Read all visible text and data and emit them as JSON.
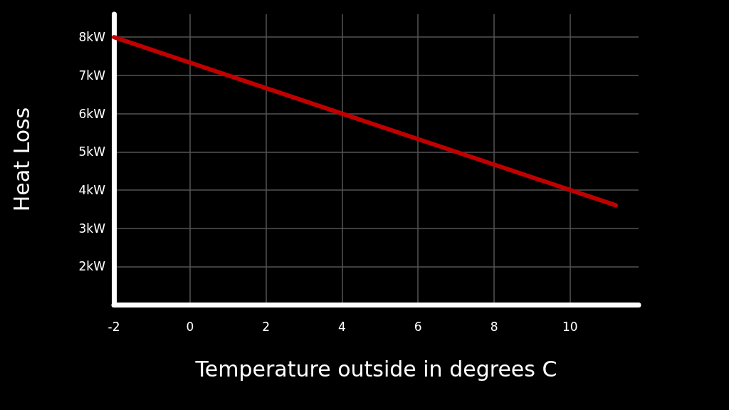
{
  "chart_data": {
    "type": "line",
    "xlabel": "Temperature outside in degrees C",
    "ylabel": "Heat Loss",
    "x": [
      -2,
      11.2
    ],
    "series": [
      {
        "color": "#c00000",
        "values": [
          8,
          3.6
        ]
      }
    ],
    "xlim": [
      -2,
      11.8
    ],
    "xticks": [
      -2,
      0,
      2,
      4,
      6,
      8,
      10
    ],
    "ylim": [
      1,
      8.6
    ],
    "yticks": [
      {
        "value": 2,
        "label": "2kW"
      },
      {
        "value": 3,
        "label": "3kW"
      },
      {
        "value": 4,
        "label": "4kW"
      },
      {
        "value": 5,
        "label": "5kW"
      },
      {
        "value": 6,
        "label": "6kW"
      },
      {
        "value": 7,
        "label": "7kW"
      },
      {
        "value": 8,
        "label": "8kW"
      }
    ],
    "grid": true,
    "marker": "none",
    "line_style": "solid"
  }
}
